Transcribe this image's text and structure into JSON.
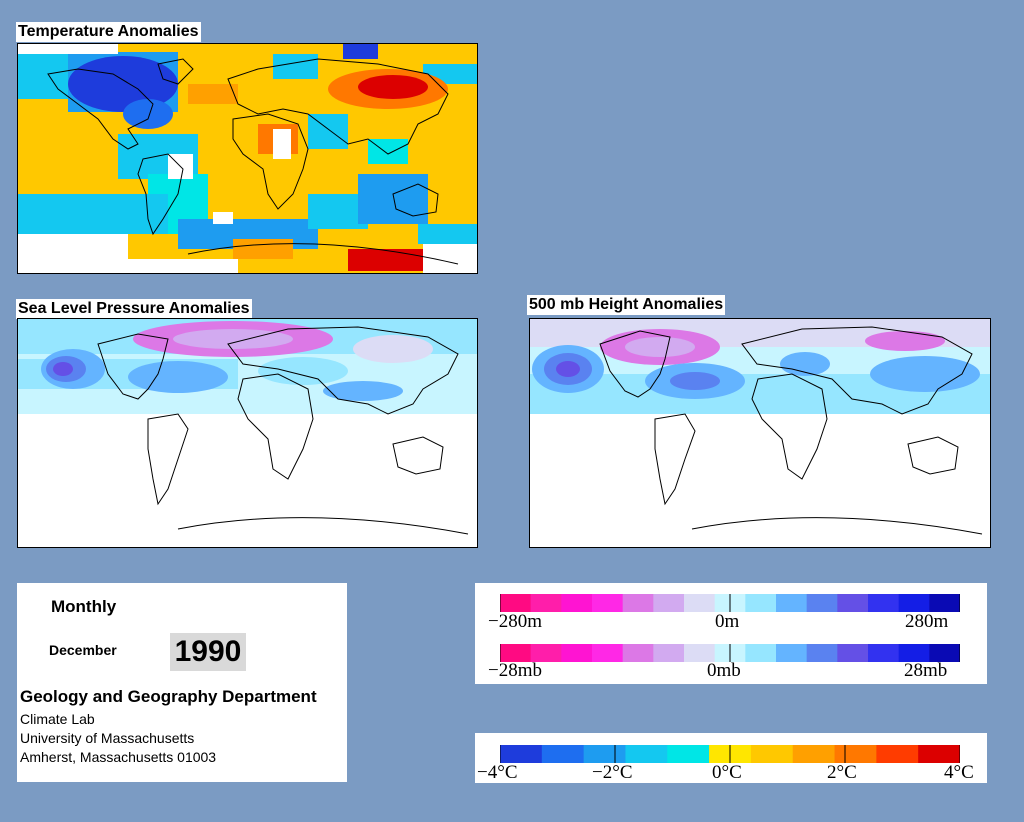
{
  "maps": {
    "temperature": {
      "title": "Temperature Anomalies"
    },
    "slp": {
      "title": "Sea Level Pressure Anomalies"
    },
    "height": {
      "title": "500 mb Height Anomalies"
    }
  },
  "info": {
    "period": "Monthly",
    "month": "December",
    "year": "1990",
    "department": "Geology and Geography Department",
    "lab": "Climate Lab",
    "university": "University of Massachusetts",
    "address": "Amherst, Massachusetts 01003"
  },
  "scales": {
    "height": {
      "labels": [
        "−280m",
        "0m",
        "280m"
      ]
    },
    "pressure": {
      "labels": [
        "−28mb",
        "0mb",
        "28mb"
      ]
    },
    "temperature": {
      "labels": [
        "−4°C",
        "−2°C",
        "0°C",
        "2°C",
        "4°C"
      ]
    }
  },
  "colors": {
    "background": "#7b9bc3",
    "anomaly_ramp": [
      "#ff0a82",
      "#ff1eaa",
      "#ff14d2",
      "#ff28e6",
      "#dc78e6",
      "#d2aaf0",
      "#dcdcf5",
      "#c8f5ff",
      "#96e6ff",
      "#64b4ff",
      "#5a82f0",
      "#6450e6",
      "#3232f0",
      "#141ee6",
      "#0a0ab4"
    ],
    "temperature_ramp": [
      "#1e3cdc",
      "#1e6ef0",
      "#1e9cf0",
      "#14c8f0",
      "#00e6e6",
      "#ffe600",
      "#ffc800",
      "#ffa000",
      "#ff7800",
      "#ff3c00",
      "#dc0000"
    ],
    "land_outline": "#000000"
  }
}
